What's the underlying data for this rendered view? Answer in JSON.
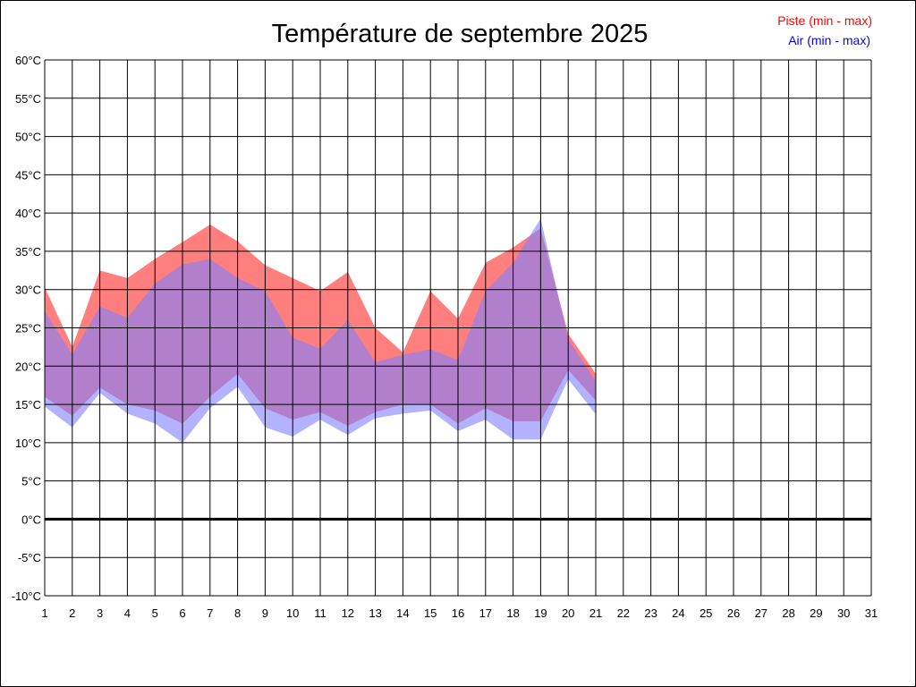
{
  "chart_data": {
    "type": "area",
    "title": "Température de septembre 2025",
    "xlabel": "",
    "ylabel": "",
    "x": [
      1,
      2,
      3,
      4,
      5,
      6,
      7,
      8,
      9,
      10,
      11,
      12,
      13,
      14,
      15,
      16,
      17,
      18,
      19,
      20,
      21,
      22,
      23,
      24,
      25,
      26,
      27,
      28,
      29,
      30,
      31
    ],
    "xlim": [
      1,
      31
    ],
    "ylim": [
      -10,
      60
    ],
    "y_ticks": [
      -10,
      -5,
      0,
      5,
      10,
      15,
      20,
      25,
      30,
      35,
      40,
      45,
      50,
      55,
      60
    ],
    "y_tick_labels": [
      "-10°C",
      "-5°C",
      "0°C",
      "5°C",
      "10°C",
      "15°C",
      "20°C",
      "25°C",
      "30°C",
      "35°C",
      "40°C",
      "45°C",
      "50°C",
      "55°C",
      "60°C"
    ],
    "x_tick_labels": [
      "1",
      "2",
      "3",
      "4",
      "5",
      "6",
      "7",
      "8",
      "9",
      "10",
      "11",
      "12",
      "13",
      "14",
      "15",
      "16",
      "17",
      "18",
      "19",
      "20",
      "21",
      "22",
      "23",
      "24",
      "25",
      "26",
      "27",
      "28",
      "29",
      "30",
      "31"
    ],
    "grid": true,
    "zero_line": true,
    "legend_position": "top-right",
    "series": [
      {
        "name": "Piste (min - max)",
        "color": "#ff0000",
        "fill": "#ff7f7f",
        "min": [
          16.0,
          13.5,
          17.2,
          15.0,
          14.2,
          12.5,
          16.0,
          19.0,
          14.5,
          13.0,
          14.0,
          12.2,
          14.0,
          15.0,
          15.0,
          12.5,
          14.5,
          12.8,
          12.8,
          19.5,
          15.5
        ],
        "max": [
          30.3,
          22.5,
          32.5,
          31.5,
          34.0,
          36.2,
          38.5,
          36.3,
          33.2,
          31.5,
          29.8,
          32.3,
          25.0,
          21.8,
          29.8,
          26.2,
          33.5,
          35.5,
          38.0,
          24.2,
          19.0
        ]
      },
      {
        "name": "Air (min - max)",
        "color": "#0000ff",
        "fill": "#7f7fff",
        "min": [
          14.7,
          12.0,
          16.5,
          13.8,
          12.5,
          10.0,
          14.5,
          17.3,
          12.0,
          10.8,
          13.0,
          11.0,
          13.2,
          13.8,
          14.2,
          11.5,
          13.0,
          10.4,
          10.4,
          18.3,
          13.7
        ],
        "max": [
          27.2,
          21.5,
          27.8,
          26.3,
          30.8,
          33.3,
          34.0,
          31.5,
          29.8,
          23.7,
          22.3,
          26.0,
          20.5,
          21.5,
          22.2,
          20.8,
          29.8,
          33.5,
          39.3,
          23.5,
          18.0
        ]
      }
    ]
  }
}
